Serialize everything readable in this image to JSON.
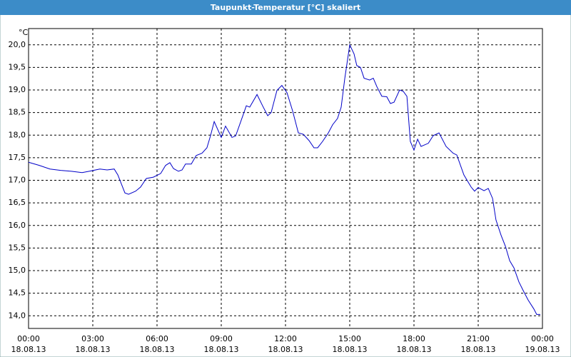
{
  "chart_data": {
    "type": "line",
    "title": "Taupunkt-Temperatur [°C] skaliert",
    "y_label": "°C",
    "x": [
      0,
      0.5,
      1,
      1.5,
      2,
      2.5,
      2.83,
      3.33,
      3.67,
      4,
      4.17,
      4.5,
      4.67,
      5,
      5.23,
      5.5,
      5.83,
      6.17,
      6.4,
      6.6,
      6.77,
      7,
      7.17,
      7.33,
      7.6,
      7.83,
      8.1,
      8.33,
      8.5,
      8.67,
      9,
      9.2,
      9.5,
      9.67,
      10,
      10.17,
      10.33,
      10.67,
      10.93,
      11.17,
      11.33,
      11.6,
      11.83,
      12.07,
      12.33,
      12.6,
      12.83,
      13.1,
      13.33,
      13.5,
      13.73,
      14,
      14.2,
      14.43,
      14.6,
      14.77,
      15,
      15.2,
      15.33,
      15.5,
      15.67,
      15.93,
      16.1,
      16.27,
      16.5,
      16.73,
      16.9,
      17.07,
      17.33,
      17.5,
      17.67,
      17.83,
      18,
      18.17,
      18.33,
      18.67,
      18.9,
      19.17,
      19.5,
      19.83,
      20,
      20.33,
      20.67,
      20.83,
      21,
      21.27,
      21.47,
      21.67,
      21.83,
      22.07,
      22.27,
      22.47,
      22.67,
      22.9,
      23.1,
      23.33,
      23.6,
      23.73,
      23.9
    ],
    "series": [
      {
        "name": "Taupunkt-Temperatur",
        "color": "#0000c8",
        "values": [
          17.4,
          17.33,
          17.25,
          17.22,
          17.2,
          17.17,
          17.2,
          17.25,
          17.23,
          17.25,
          17.12,
          16.72,
          16.69,
          16.76,
          16.85,
          17.04,
          17.07,
          17.15,
          17.33,
          17.39,
          17.26,
          17.2,
          17.23,
          17.36,
          17.36,
          17.55,
          17.6,
          17.72,
          17.99,
          18.3,
          17.95,
          18.2,
          17.95,
          17.98,
          18.42,
          18.65,
          18.62,
          18.9,
          18.65,
          18.43,
          18.5,
          18.99,
          19.1,
          18.94,
          18.54,
          18.05,
          18.02,
          17.88,
          17.72,
          17.72,
          17.86,
          18.05,
          18.23,
          18.37,
          18.62,
          19.26,
          20.0,
          19.8,
          19.54,
          19.5,
          19.26,
          19.22,
          19.26,
          19.07,
          18.86,
          18.85,
          18.7,
          18.73,
          19.0,
          18.97,
          18.86,
          17.86,
          17.67,
          17.91,
          17.75,
          17.82,
          17.99,
          18.05,
          17.75,
          17.6,
          17.56,
          17.12,
          16.85,
          16.76,
          16.84,
          16.77,
          16.82,
          16.6,
          16.12,
          15.78,
          15.54,
          15.22,
          15.06,
          14.75,
          14.56,
          14.35,
          14.15,
          14.03,
          14.03
        ]
      }
    ],
    "xlim": [
      0,
      24
    ],
    "xticks": [
      {
        "value": 0,
        "label": "00:00 18.08.13"
      },
      {
        "value": 3,
        "label": "03:00 18.08.13"
      },
      {
        "value": 6,
        "label": "06:00 18.08.13"
      },
      {
        "value": 9,
        "label": "09:00 18.08.13"
      },
      {
        "value": 12,
        "label": "12:00 18.08.13"
      },
      {
        "value": 15,
        "label": "15:00 18.08.13"
      },
      {
        "value": 18,
        "label": "18:00 18.08.13"
      },
      {
        "value": 21,
        "label": "21:00 18.08.13"
      },
      {
        "value": 24,
        "label": "00:00 19.08.13"
      }
    ],
    "ylim": [
      13.72,
      20.36
    ],
    "yticks": [
      {
        "value": 14,
        "label": "14,0"
      },
      {
        "value": 14.5,
        "label": "14,5"
      },
      {
        "value": 15,
        "label": "15,0"
      },
      {
        "value": 15.5,
        "label": "15,5"
      },
      {
        "value": 16,
        "label": "16,0"
      },
      {
        "value": 16.5,
        "label": "16,5"
      },
      {
        "value": 17,
        "label": "17,0"
      },
      {
        "value": 17.5,
        "label": "17,5"
      },
      {
        "value": 18,
        "label": "18,0"
      },
      {
        "value": 18.5,
        "label": "18,5"
      },
      {
        "value": 19,
        "label": "19,0"
      },
      {
        "value": 19.5,
        "label": "19,5"
      },
      {
        "value": 20,
        "label": "20,0"
      }
    ],
    "grid": true
  }
}
